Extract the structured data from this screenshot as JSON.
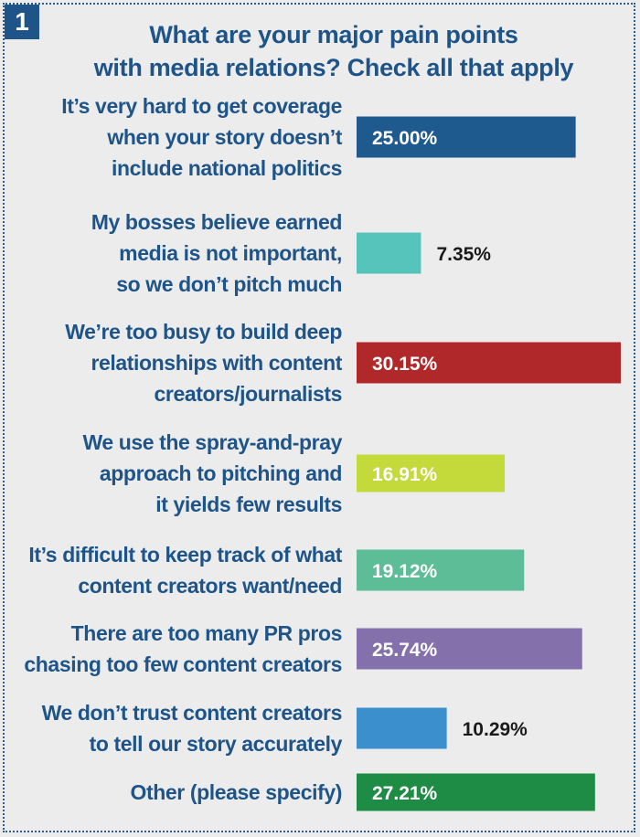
{
  "badge": "1",
  "title_lines": [
    "What are your major pain points",
    "with media relations? Check all that apply"
  ],
  "colors": {
    "title": "#1e5488",
    "background": "#ececec",
    "value_outside": "#1a1a1a",
    "value_inside": "#ffffff"
  },
  "chart_data": {
    "type": "bar",
    "orientation": "horizontal",
    "title": "What are your major pain points with media relations? Check all that apply",
    "xlim": [
      0,
      30.15
    ],
    "grid": false,
    "legend": "none",
    "categories": [
      {
        "lines": [
          "It’s very hard to get coverage",
          "when your story doesn’t",
          "include national politics"
        ]
      },
      {
        "lines": [
          "My bosses believe earned",
          "media is not important,",
          "so we don’t pitch much"
        ]
      },
      {
        "lines": [
          "We’re too busy to build deep",
          "relationships with content",
          "creators/journalists"
        ]
      },
      {
        "lines": [
          "We use the spray-and-pray",
          "approach to pitching and",
          "it yields few results"
        ]
      },
      {
        "lines": [
          "It’s difficult to keep track of what",
          "content creators want/need"
        ]
      },
      {
        "lines": [
          "There are too many PR pros",
          "chasing too few content creators"
        ]
      },
      {
        "lines": [
          "We don’t trust content creators",
          "to tell our story accurately"
        ]
      },
      {
        "lines": [
          "Other (please specify)"
        ]
      }
    ],
    "values": [
      25.0,
      7.35,
      30.15,
      16.91,
      19.12,
      25.74,
      10.29,
      27.21
    ],
    "value_labels": [
      "25.00%",
      "7.35%",
      "30.15%",
      "16.91%",
      "19.12%",
      "25.74%",
      "10.29%",
      "27.21%"
    ],
    "bar_colors": [
      "#1f5a8e",
      "#56c4bb",
      "#b1282a",
      "#c3da3a",
      "#5cbd96",
      "#8470ab",
      "#3b8fcc",
      "#1f8c46"
    ],
    "label_inside": [
      true,
      false,
      true,
      true,
      true,
      true,
      false,
      true
    ]
  }
}
